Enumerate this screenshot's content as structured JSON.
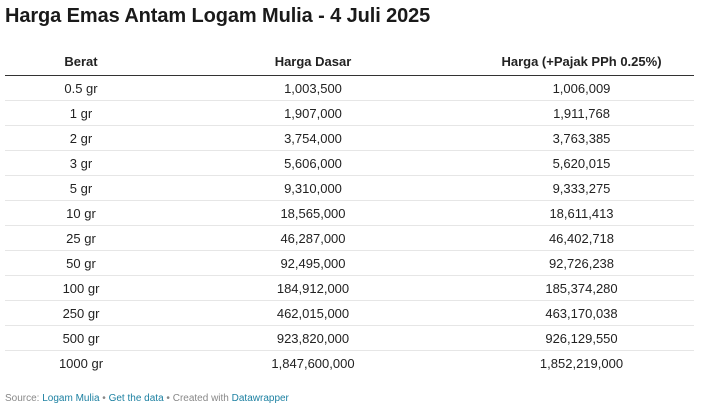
{
  "chart_data": {
    "type": "table",
    "title": "Harga Emas Antam Logam Mulia - 4 Juli 2025",
    "columns": [
      "Berat",
      "Harga Dasar",
      "Harga (+Pajak PPh 0.25%)"
    ],
    "rows": [
      [
        "0.5 gr",
        "1,003,500",
        "1,006,009"
      ],
      [
        "1 gr",
        "1,907,000",
        "1,911,768"
      ],
      [
        "2 gr",
        "3,754,000",
        "3,763,385"
      ],
      [
        "3 gr",
        "5,606,000",
        "5,620,015"
      ],
      [
        "5 gr",
        "9,310,000",
        "9,333,275"
      ],
      [
        "10 gr",
        "18,565,000",
        "18,611,413"
      ],
      [
        "25 gr",
        "46,287,000",
        "46,402,718"
      ],
      [
        "50 gr",
        "92,495,000",
        "92,726,238"
      ],
      [
        "100 gr",
        "184,912,000",
        "185,374,280"
      ],
      [
        "250 gr",
        "462,015,000",
        "463,170,038"
      ],
      [
        "500 gr",
        "923,820,000",
        "926,129,550"
      ],
      [
        "1000 gr",
        "1,847,600,000",
        "1,852,219,000"
      ]
    ]
  },
  "footer": {
    "source_label": "Source:",
    "source_link": "Logam Mulia",
    "separator": "•",
    "get_data": "Get the data",
    "created_with": "Created with",
    "tool": "Datawrapper"
  },
  "colors": {
    "link": "#1d81a2",
    "header_rule": "#333333",
    "row_rule": "#e6e6e6"
  }
}
